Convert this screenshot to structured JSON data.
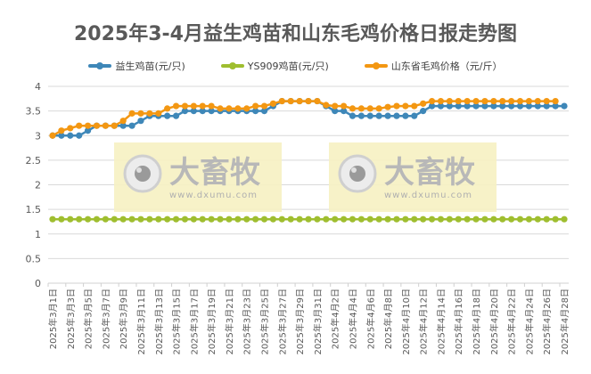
{
  "title": "2025年3-4月益生鸡苗和山东毛鸡价格日报走势图",
  "legend": [
    {
      "label": "益生鸡苗(元/只)",
      "color": "#3E87B8"
    },
    {
      "label": "YS909鸡苗(元/只)",
      "color": "#9FBE2F"
    },
    {
      "label": "山东省毛鸡价格（元/斤）",
      "color": "#F39712"
    }
  ],
  "watermark": {
    "brand": "大畜牧",
    "url": "www.dxumu.com"
  },
  "chart_data": {
    "type": "line",
    "title": "2025年3-4月益生鸡苗和山东毛鸡价格日报走势图",
    "xlabel": "",
    "ylabel": "",
    "ylim": [
      0,
      4
    ],
    "yticks": [
      0,
      0.5,
      1,
      1.5,
      2,
      2.5,
      3,
      3.5,
      4
    ],
    "grid": true,
    "legend_position": "top",
    "x": [
      "2025年3月1日",
      "2025年3月2日",
      "2025年3月3日",
      "2025年3月4日",
      "2025年3月5日",
      "2025年3月6日",
      "2025年3月7日",
      "2025年3月8日",
      "2025年3月9日",
      "2025年3月10日",
      "2025年3月11日",
      "2025年3月12日",
      "2025年3月13日",
      "2025年3月14日",
      "2025年3月15日",
      "2025年3月16日",
      "2025年3月17日",
      "2025年3月18日",
      "2025年3月19日",
      "2025年3月20日",
      "2025年3月21日",
      "2025年3月22日",
      "2025年3月23日",
      "2025年3月24日",
      "2025年3月25日",
      "2025年3月26日",
      "2025年3月27日",
      "2025年3月28日",
      "2025年3月29日",
      "2025年3月30日",
      "2025年3月31日",
      "2025年4月1日",
      "2025年4月2日",
      "2025年4月3日",
      "2025年4月4日",
      "2025年4月5日",
      "2025年4月6日",
      "2025年4月7日",
      "2025年4月8日",
      "2025年4月9日",
      "2025年4月10日",
      "2025年4月11日",
      "2025年4月12日",
      "2025年4月13日",
      "2025年4月14日",
      "2025年4月15日",
      "2025年4月16日",
      "2025年4月17日",
      "2025年4月18日",
      "2025年4月19日",
      "2025年4月20日",
      "2025年4月21日",
      "2025年4月22日",
      "2025年4月23日",
      "2025年4月24日",
      "2025年4月25日",
      "2025年4月26日",
      "2025年4月27日",
      "2025年4月28日"
    ],
    "x_tick_labels": [
      "2025年3月1日",
      "2025年3月3日",
      "2025年3月5日",
      "2025年3月7日",
      "2025年3月9日",
      "2025年3月11日",
      "2025年3月13日",
      "2025年3月15日",
      "2025年3月17日",
      "2025年3月19日",
      "2025年3月21日",
      "2025年3月23日",
      "2025年3月25日",
      "2025年3月27日",
      "2025年3月29日",
      "2025年3月31日",
      "2025年4月2日",
      "2025年4月4日",
      "2025年4月6日",
      "2025年4月8日",
      "2025年4月10日",
      "2025年4月12日",
      "2025年4月14日",
      "2025年4月16日",
      "2025年4月18日",
      "2025年4月20日",
      "2025年4月22日",
      "2025年4月24日",
      "2025年4月26日",
      "2025年4月28日"
    ],
    "series": [
      {
        "name": "益生鸡苗(元/只)",
        "color": "#3E87B8",
        "values": [
          3.0,
          3.0,
          3.0,
          3.0,
          3.1,
          3.2,
          3.2,
          3.2,
          3.2,
          3.2,
          3.3,
          3.4,
          3.4,
          3.4,
          3.4,
          3.5,
          3.5,
          3.5,
          3.5,
          3.5,
          3.5,
          3.5,
          3.5,
          3.5,
          3.5,
          3.6,
          3.7,
          3.7,
          3.7,
          3.7,
          3.7,
          3.6,
          3.5,
          3.5,
          3.4,
          3.4,
          3.4,
          3.4,
          3.4,
          3.4,
          3.4,
          3.4,
          3.5,
          3.6,
          3.6,
          3.6,
          3.6,
          3.6,
          3.6,
          3.6,
          3.6,
          3.6,
          3.6,
          3.6,
          3.6,
          3.6,
          3.6,
          3.6,
          3.6
        ]
      },
      {
        "name": "YS909鸡苗(元/只)",
        "color": "#9FBE2F",
        "values": [
          1.3,
          1.3,
          1.3,
          1.3,
          1.3,
          1.3,
          1.3,
          1.3,
          1.3,
          1.3,
          1.3,
          1.3,
          1.3,
          1.3,
          1.3,
          1.3,
          1.3,
          1.3,
          1.3,
          1.3,
          1.3,
          1.3,
          1.3,
          1.3,
          1.3,
          1.3,
          1.3,
          1.3,
          1.3,
          1.3,
          1.3,
          1.3,
          1.3,
          1.3,
          1.3,
          1.3,
          1.3,
          1.3,
          1.3,
          1.3,
          1.3,
          1.3,
          1.3,
          1.3,
          1.3,
          1.3,
          1.3,
          1.3,
          1.3,
          1.3,
          1.3,
          1.3,
          1.3,
          1.3,
          1.3,
          1.3,
          1.3,
          1.3,
          1.3
        ]
      },
      {
        "name": "山东省毛鸡价格（元/斤）",
        "color": "#F39712",
        "values": [
          3.0,
          3.1,
          3.15,
          3.2,
          3.2,
          3.2,
          3.2,
          3.2,
          3.3,
          3.45,
          3.45,
          3.45,
          3.45,
          3.55,
          3.6,
          3.6,
          3.6,
          3.6,
          3.6,
          3.55,
          3.55,
          3.55,
          3.55,
          3.6,
          3.6,
          3.65,
          3.7,
          3.7,
          3.7,
          3.7,
          3.7,
          3.62,
          3.6,
          3.6,
          3.55,
          3.55,
          3.55,
          3.55,
          3.58,
          3.6,
          3.6,
          3.6,
          3.65,
          3.7,
          3.7,
          3.7,
          3.7,
          3.7,
          3.7,
          3.7,
          3.7,
          3.7,
          3.7,
          3.7,
          3.7,
          3.7,
          3.7,
          3.7,
          null
        ]
      }
    ]
  }
}
